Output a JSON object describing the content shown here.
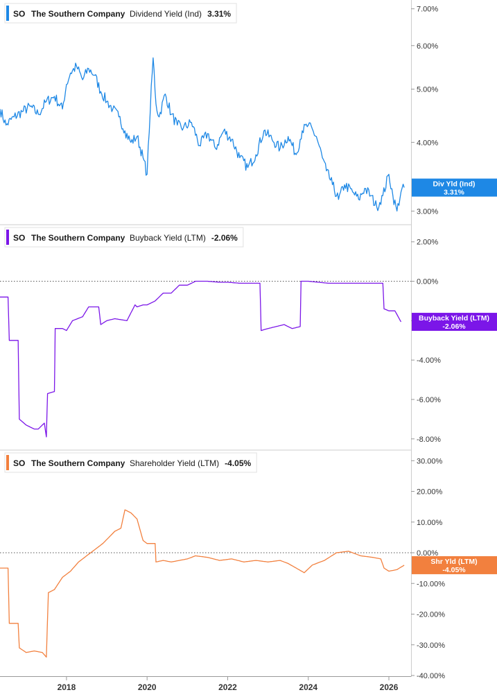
{
  "chart_data": [
    {
      "type": "line",
      "ticker": "SO",
      "company": "The Southern Company",
      "metric": "Dividend Yield (Ind)",
      "current_value": "3.31%",
      "tag_label": "Div Yld (Ind)",
      "tag_value": "3.31%",
      "color": "#1E88E5",
      "scale": "log",
      "ylim": [
        2.85,
        7.2
      ],
      "yticks": [
        3,
        4,
        5,
        6,
        7
      ],
      "ytick_labels": [
        "3.00%",
        "4.00%",
        "5.00%",
        "6.00%",
        "7.00%"
      ],
      "zero_line": false,
      "series": [
        {
          "x": [
            2016.35,
            2016.5,
            2016.7,
            2016.9,
            2017.1,
            2017.3,
            2017.5,
            2017.7,
            2017.9,
            2018.0,
            2018.1,
            2018.25,
            2018.4,
            2018.55,
            2018.7,
            2018.85,
            2019.0,
            2019.15,
            2019.3,
            2019.45,
            2019.6,
            2019.75,
            2019.9,
            2020.0,
            2020.08,
            2020.15,
            2020.22,
            2020.3,
            2020.45,
            2020.6,
            2020.75,
            2020.9,
            2021.1,
            2021.3,
            2021.5,
            2021.7,
            2021.9,
            2022.1,
            2022.3,
            2022.5,
            2022.7,
            2022.9,
            2023.1,
            2023.3,
            2023.5,
            2023.7,
            2023.85,
            2024.0,
            2024.2,
            2024.35,
            2024.45,
            2024.6,
            2024.75,
            2024.9,
            2025.1,
            2025.25,
            2025.4,
            2025.55,
            2025.7,
            2025.85,
            2026.0,
            2026.1,
            2026.2,
            2026.3,
            2026.38
          ],
          "y": [
            4.6,
            4.3,
            4.45,
            4.55,
            4.65,
            4.5,
            4.75,
            4.85,
            4.6,
            5.1,
            5.35,
            5.5,
            5.2,
            5.45,
            5.3,
            4.95,
            4.75,
            4.6,
            4.45,
            4.2,
            4.0,
            4.1,
            3.75,
            3.5,
            4.6,
            5.7,
            4.7,
            4.45,
            4.9,
            4.5,
            4.3,
            4.25,
            4.35,
            3.95,
            4.15,
            3.9,
            4.2,
            4.05,
            3.75,
            3.6,
            3.8,
            4.2,
            4.05,
            3.9,
            4.1,
            3.8,
            4.2,
            4.3,
            4.1,
            3.75,
            3.55,
            3.35,
            3.15,
            3.35,
            3.25,
            3.15,
            3.3,
            3.2,
            3.05,
            3.2,
            3.5,
            3.2,
            3.0,
            3.25,
            3.31
          ]
        }
      ]
    },
    {
      "type": "line",
      "ticker": "SO",
      "company": "The Southern Company",
      "metric": "Buyback Yield (LTM)",
      "current_value": "-2.06%",
      "tag_label": "Buyback Yield (LTM)",
      "tag_value": "-2.06%",
      "color": "#7B16E8",
      "scale": "linear",
      "ylim": [
        -8.5,
        2.8
      ],
      "yticks": [
        2,
        0,
        -2,
        -4,
        -6,
        -8
      ],
      "ytick_labels": [
        "2.00%",
        "0.00%",
        "",
        "-4.00%",
        "-6.00%",
        "-8.00%"
      ],
      "zero_line": true,
      "series": [
        {
          "x": [
            2016.35,
            2016.55,
            2016.58,
            2016.8,
            2016.83,
            2017.0,
            2017.2,
            2017.3,
            2017.45,
            2017.5,
            2017.53,
            2017.7,
            2017.72,
            2017.9,
            2018.0,
            2018.15,
            2018.4,
            2018.55,
            2018.8,
            2018.85,
            2019.0,
            2019.2,
            2019.5,
            2019.7,
            2019.75,
            2019.9,
            2020.0,
            2020.2,
            2020.4,
            2020.6,
            2020.8,
            2021.0,
            2021.2,
            2021.5,
            2021.8,
            2022.0,
            2022.3,
            2022.6,
            2022.8,
            2022.83,
            2023.0,
            2023.2,
            2023.4,
            2023.6,
            2023.8,
            2023.82,
            2024.0,
            2024.5,
            2025.0,
            2025.5,
            2025.85,
            2025.88,
            2026.0,
            2026.15,
            2026.3
          ],
          "y": [
            -0.8,
            -0.8,
            -3.0,
            -3.0,
            -7.0,
            -7.3,
            -7.5,
            -7.5,
            -7.2,
            -7.9,
            -5.7,
            -5.6,
            -2.4,
            -2.4,
            -2.5,
            -2.0,
            -1.8,
            -1.3,
            -1.3,
            -2.2,
            -2.0,
            -1.9,
            -2.0,
            -1.2,
            -1.3,
            -1.2,
            -1.2,
            -1.0,
            -0.6,
            -0.6,
            -0.2,
            -0.2,
            0.0,
            0.0,
            -0.05,
            -0.05,
            -0.1,
            -0.1,
            -0.1,
            -2.5,
            -2.4,
            -2.3,
            -2.2,
            -2.4,
            -2.3,
            0.0,
            0.0,
            -0.1,
            -0.1,
            -0.1,
            -0.1,
            -1.4,
            -1.5,
            -1.5,
            -2.06
          ]
        }
      ]
    },
    {
      "type": "line",
      "ticker": "SO",
      "company": "The Southern Company",
      "metric": "Shareholder Yield (LTM)",
      "current_value": "-4.05%",
      "tag_label": "Shr Yld (LTM)",
      "tag_value": "-4.05%",
      "color": "#F2803E",
      "scale": "linear",
      "ylim": [
        -40,
        33
      ],
      "yticks": [
        30,
        20,
        10,
        0,
        -10,
        -20,
        -30,
        -40
      ],
      "ytick_labels": [
        "30.00%",
        "20.00%",
        "10.00%",
        "0.00%",
        "-10.00%",
        "-20.00%",
        "-30.00%",
        "-40.00%"
      ],
      "zero_line": true,
      "series": [
        {
          "x": [
            2016.35,
            2016.55,
            2016.58,
            2016.8,
            2016.83,
            2017.0,
            2017.2,
            2017.4,
            2017.5,
            2017.55,
            2017.7,
            2017.9,
            2018.1,
            2018.3,
            2018.6,
            2018.9,
            2019.2,
            2019.35,
            2019.45,
            2019.6,
            2019.75,
            2019.9,
            2020.0,
            2020.2,
            2020.22,
            2020.4,
            2020.6,
            2020.8,
            2021.0,
            2021.2,
            2021.5,
            2021.8,
            2022.1,
            2022.4,
            2022.7,
            2023.0,
            2023.3,
            2023.5,
            2023.7,
            2023.9,
            2024.1,
            2024.4,
            2024.7,
            2025.0,
            2025.3,
            2025.6,
            2025.8,
            2025.88,
            2026.0,
            2026.2,
            2026.38
          ],
          "y": [
            -5.0,
            -5.0,
            -23.0,
            -23.0,
            -31.0,
            -32.5,
            -32.0,
            -32.5,
            -34.0,
            -13.0,
            -12.0,
            -8.0,
            -6.0,
            -3.0,
            0.0,
            3.0,
            7.0,
            8.0,
            14.0,
            13.0,
            11.0,
            4.0,
            3.0,
            3.0,
            -3.0,
            -2.5,
            -3.0,
            -2.5,
            -2.0,
            -1.0,
            -1.5,
            -2.5,
            -2.0,
            -3.0,
            -2.5,
            -3.0,
            -2.5,
            -3.5,
            -5.0,
            -6.5,
            -4.0,
            -2.5,
            0.0,
            0.5,
            -1.0,
            -1.5,
            -2.0,
            -5.0,
            -6.0,
            -5.5,
            -4.05
          ]
        }
      ]
    }
  ],
  "x_axis": {
    "xlim": [
      2016.35,
      2026.55
    ],
    "ticks": [
      2018,
      2020,
      2022,
      2024,
      2026
    ],
    "tick_labels": [
      "2018",
      "2020",
      "2022",
      "2024",
      "2026"
    ]
  }
}
